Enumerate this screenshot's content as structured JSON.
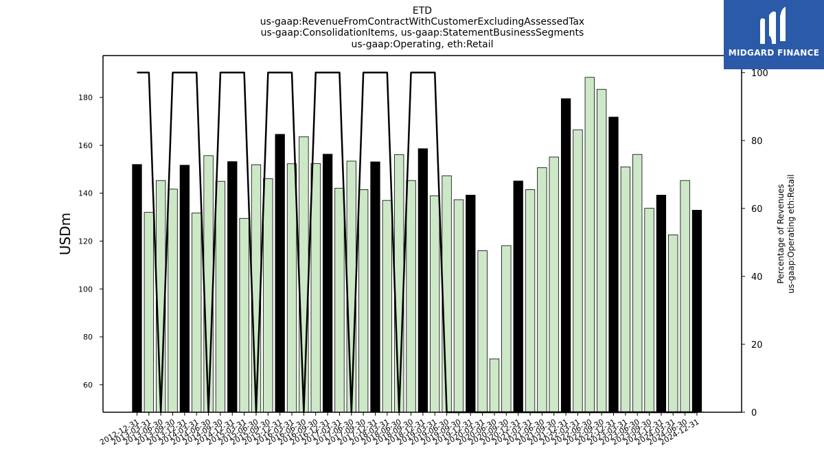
{
  "header": {
    "title_lines": [
      "ETD",
      "us-gaap:RevenueFromContractWithCustomerExcludingAssessedTax",
      "us-gaap:ConsolidationItems, us-gaap:StatementBusinessSegments",
      "us-gaap:Operating, eth:Retail"
    ]
  },
  "logo": {
    "text": "MIDGARD FINANCE",
    "background": "#2a5aa8"
  },
  "chart_data": {
    "type": "bar",
    "categories": [
      "2012-12-31",
      "2013-03-31",
      "2013-06-30",
      "2013-09-30",
      "2013-12-31",
      "2014-03-31",
      "2014-06-30",
      "2014-09-30",
      "2014-12-31",
      "2015-03-31",
      "2015-06-30",
      "2015-09-30",
      "2015-12-31",
      "2016-03-31",
      "2016-06-30",
      "2016-09-30",
      "2016-12-31",
      "2017-03-31",
      "2017-06-30",
      "2017-09-30",
      "2017-12-31",
      "2018-03-31",
      "2018-06-30",
      "2018-09-30",
      "2018-12-31",
      "2019-03-31",
      "2019-06-30",
      "2019-09-30",
      "2019-12-31",
      "2020-03-31",
      "2020-06-30",
      "2020-09-30",
      "2020-12-31",
      "2021-03-31",
      "2021-06-30",
      "2021-09-30",
      "2021-12-31",
      "2022-03-31",
      "2022-06-30",
      "2022-09-30",
      "2022-12-31",
      "2023-03-31",
      "2023-06-30",
      "2023-09-30",
      "2023-12-31",
      "2024-03-31",
      "2024-06-30",
      "2024-12-31"
    ],
    "series": [
      {
        "axis": "left",
        "kind": "bar",
        "values": [
          152,
          132,
          145.3,
          141.7,
          151.7,
          131.7,
          155.7,
          145,
          153.2,
          129.5,
          151.9,
          146.1,
          164.6,
          152.3,
          163.6,
          152.4,
          156.3,
          142.1,
          153.4,
          141.5,
          153.1,
          137,
          156.1,
          145.3,
          158.6,
          138.9,
          147.3,
          137.3,
          139.2,
          116,
          70.8,
          118.1,
          145.1,
          141.5,
          150.7,
          155.1,
          179.5,
          166.5,
          188.4,
          183.4,
          171.8,
          151,
          156.2,
          133.7,
          139.2,
          122.6,
          145.3,
          132.9
        ],
        "highlight": [
          true,
          false,
          false,
          false,
          true,
          false,
          false,
          false,
          true,
          false,
          false,
          false,
          true,
          false,
          false,
          false,
          true,
          false,
          false,
          false,
          true,
          false,
          false,
          false,
          true,
          false,
          false,
          false,
          true,
          false,
          false,
          false,
          true,
          false,
          false,
          false,
          true,
          false,
          false,
          false,
          true,
          false,
          false,
          false,
          true,
          false,
          false,
          true
        ]
      },
      {
        "axis": "right",
        "kind": "line",
        "values": [
          100,
          100,
          0,
          100,
          100,
          100,
          0,
          100,
          100,
          100,
          0,
          100,
          100,
          100,
          0,
          100,
          100,
          100,
          0,
          100,
          100,
          100,
          0,
          100,
          100,
          100,
          0,
          0,
          0,
          0,
          0,
          0,
          0,
          0,
          0,
          0,
          0,
          0,
          0,
          0,
          0,
          0,
          0,
          0,
          0,
          0,
          0,
          0
        ]
      }
    ],
    "ylabel": "USDm",
    "ylabel_right": [
      "Percentage of Revenues",
      "us-gaap:Operating eth:Retail"
    ],
    "ylim": [
      48.5,
      197.5
    ],
    "yticks": [
      60,
      80,
      100,
      120,
      140,
      160,
      180
    ],
    "ylim_right": [
      0,
      105
    ],
    "yticks_right": [
      0,
      20,
      40,
      60,
      80,
      100
    ],
    "colors": {
      "highlight_bar": "#000000",
      "normal_bar": "#cde8c7",
      "bar_edge": "#000000",
      "line": "#000000"
    },
    "grid": false
  }
}
